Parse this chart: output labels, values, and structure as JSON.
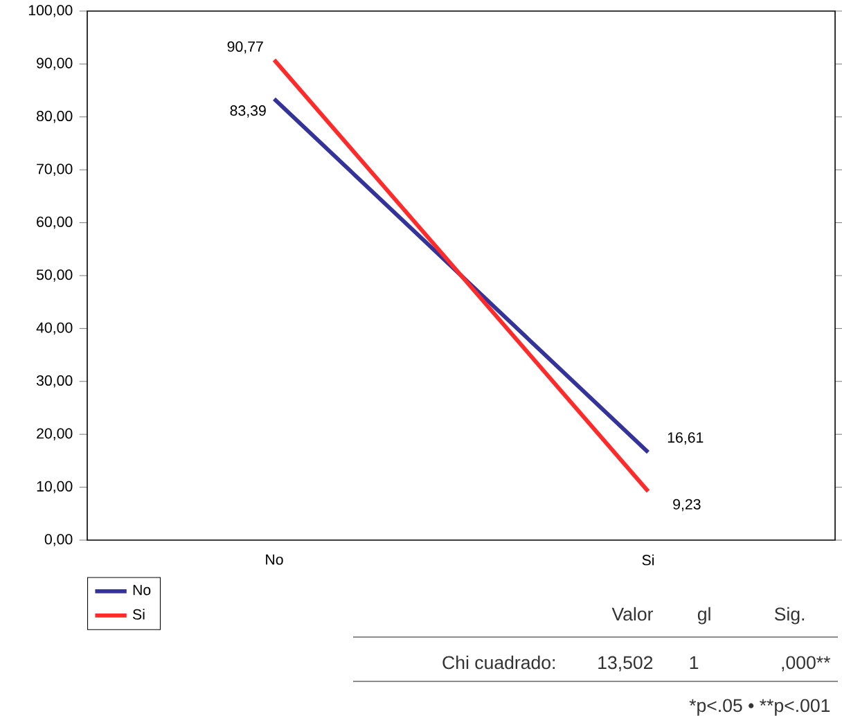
{
  "chart_data": {
    "type": "line",
    "categories": [
      "No",
      "Si"
    ],
    "series": [
      {
        "name": "No",
        "color": "#333399",
        "values": [
          83.39,
          16.61
        ],
        "value_labels": [
          "83,39",
          "16,61"
        ]
      },
      {
        "name": "Si",
        "color": "#ff2a2a",
        "values": [
          90.77,
          9.23
        ],
        "value_labels": [
          "90,77",
          "9,23"
        ]
      }
    ],
    "ylim": [
      0,
      100
    ],
    "yticks": [
      {
        "value": 0,
        "label": "0,00"
      },
      {
        "value": 10,
        "label": "10,00"
      },
      {
        "value": 20,
        "label": "20,00"
      },
      {
        "value": 30,
        "label": "30,00"
      },
      {
        "value": 40,
        "label": "40,00"
      },
      {
        "value": 50,
        "label": "50,00"
      },
      {
        "value": 60,
        "label": "60,00"
      },
      {
        "value": 70,
        "label": "70,00"
      },
      {
        "value": 80,
        "label": "80,00"
      },
      {
        "value": 90,
        "label": "90,00"
      },
      {
        "value": 100,
        "label": "100,00"
      }
    ],
    "grid": false,
    "legend": "bottom left",
    "marker": "none",
    "line_style": "solid",
    "annotations": [
      "Valor",
      "gl",
      "Sig.",
      "Chi cuadrado:",
      "13,502",
      "1",
      ",000**",
      "*p<.05 • **p<.001"
    ]
  }
}
